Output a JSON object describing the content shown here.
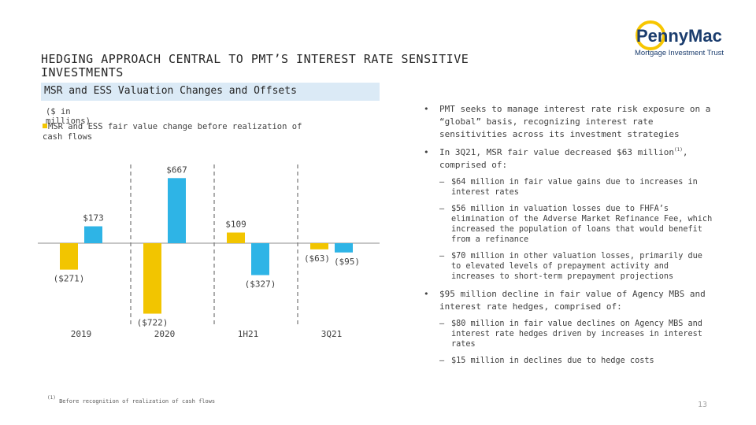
{
  "title": "HEDGING APPROACH CENTRAL TO PMT’S INTEREST RATE SENSITIVE INVESTMENTS",
  "section_label": "MSR and ESS Valuation Changes and Offsets",
  "units": "($ in millions)",
  "legend_label": "MSR and ESS fair value change before realization of cash flows",
  "logo": {
    "name": "PennyMac",
    "subtitle": "Mortgage Investment Trust"
  },
  "colors": {
    "gold": "#f2c500",
    "blue": "#2eb4e6",
    "logo_navy": "#1b3d6e",
    "logo_gold": "#f7c600"
  },
  "chart_data": {
    "type": "bar",
    "categories": [
      "2019",
      "2020",
      "1H21",
      "3Q21"
    ],
    "series": [
      {
        "name": "MSR and ESS fair value change before realization of cash flows",
        "color": "#f2c500",
        "values": [
          -271,
          -722,
          109,
          -63
        ],
        "labels": [
          "($271)",
          "($722)",
          "$109",
          "($63)"
        ]
      },
      {
        "color": "#2eb4e6",
        "values": [
          173,
          667,
          -327,
          -95
        ],
        "labels": [
          "$173",
          "$667",
          "($327)",
          "($95)"
        ]
      }
    ],
    "grid": false,
    "legend_position": "top-left"
  },
  "bullets": [
    {
      "text": "PMT seeks to manage interest rate risk exposure on a “global” basis, recognizing interest rate sensitivities across its investment strategies",
      "subs": []
    },
    {
      "text": "In 3Q21, MSR fair value decreased $63 million",
      "sup": "(1)",
      "after": ", comprised of:",
      "subs": [
        "$64 million in fair value gains due to increases in interest rates",
        "$56 million in valuation losses due to FHFA’s elimination of the Adverse Market Refinance Fee, which increased the population of loans that would benefit from a refinance",
        "$70 million in other valuation losses, primarily due to elevated levels of prepayment activity and increases to short-term prepayment projections"
      ]
    },
    {
      "text": "$95 million decline in fair value of Agency MBS and interest rate hedges, comprised of:",
      "subs": [
        "$80 million in fair value declines on Agency MBS and interest rate hedges driven by increases in interest rates",
        "$15 million in declines due to hedge costs"
      ]
    }
  ],
  "footnote": {
    "marker": "(1)",
    "text": "Before recognition of realization of cash flows"
  },
  "page_number": "13"
}
